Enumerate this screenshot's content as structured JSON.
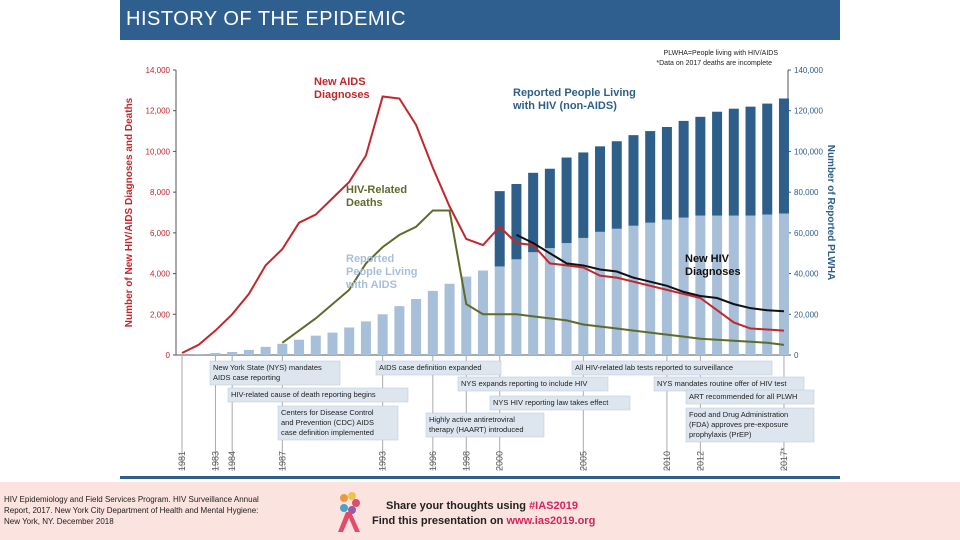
{
  "slide": {
    "title": "HISTORY OF THE EPIDEMIC"
  },
  "chart_data": {
    "type": "bar+line",
    "left_axis": {
      "label": "Number of New HIV/AIDS Diagnoses and Deaths",
      "range": [
        0,
        14000
      ],
      "ticks": [
        "0",
        "2,000",
        "4,000",
        "6,000",
        "8,000",
        "10,000",
        "12,000",
        "14,000"
      ]
    },
    "right_axis": {
      "label": "Number of Reported PLWHA",
      "range": [
        0,
        140000
      ],
      "ticks": [
        "0",
        "20,000",
        "40,000",
        "60,000",
        "80,000",
        "100,000",
        "120,000",
        "140,000"
      ]
    },
    "x_range": [
      1981,
      2017
    ],
    "year_labels": [
      "1981",
      "1983",
      "1984",
      "1987",
      "1993",
      "1996",
      "1998",
      "2000",
      "2005",
      "2010",
      "2012",
      "2017*"
    ],
    "legend_note": [
      "PLWHA=People living with HIV/AIDS",
      "*Data on 2017 deaths are incomplete"
    ],
    "bar_years": [
      1982,
      1983,
      1984,
      1985,
      1986,
      1987,
      1988,
      1989,
      1990,
      1991,
      1992,
      1993,
      1994,
      1995,
      1996,
      1997,
      1998,
      1999,
      2000,
      2001,
      2002,
      2003,
      2004,
      2005,
      2006,
      2007,
      2008,
      2009,
      2010,
      2011,
      2012,
      2013,
      2014,
      2015,
      2016,
      2017
    ],
    "series": [
      {
        "name": "Reported People Living with AIDS",
        "type": "bar",
        "axis": "right",
        "color": "#a7bfd8",
        "values": [
          500,
          1000,
          1500,
          2500,
          4000,
          5500,
          7500,
          9500,
          11000,
          13500,
          16500,
          20000,
          24000,
          27500,
          31500,
          35000,
          38500,
          41500,
          43500,
          47000,
          50500,
          52500,
          55000,
          57500,
          60500,
          62000,
          63500,
          65000,
          66500,
          67500,
          68500,
          68500,
          68500,
          68500,
          69000,
          69500
        ]
      },
      {
        "name": "Reported People Living with HIV (non-AIDS)",
        "type": "bar",
        "axis": "right",
        "color": "#2e5f8a",
        "stacked_on": "Reported People Living with AIDS",
        "values": [
          null,
          null,
          null,
          null,
          null,
          null,
          null,
          null,
          null,
          null,
          null,
          null,
          null,
          null,
          null,
          null,
          null,
          null,
          37000,
          37000,
          39000,
          39000,
          42000,
          42000,
          42000,
          43000,
          44500,
          45000,
          45500,
          47500,
          48500,
          51000,
          52500,
          53500,
          54500,
          56500
        ]
      },
      {
        "name": "New AIDS Diagnoses",
        "type": "line",
        "axis": "left",
        "color": "#c1272d",
        "x": [
          1981,
          1982,
          1983,
          1984,
          1985,
          1986,
          1987,
          1988,
          1989,
          1990,
          1991,
          1992,
          1993,
          1994,
          1995,
          1996,
          1997,
          1998,
          1999,
          2000,
          2001,
          2002,
          2003,
          2004,
          2005,
          2006,
          2007,
          2008,
          2009,
          2010,
          2011,
          2012,
          2013,
          2014,
          2015,
          2016,
          2017
        ],
        "values": [
          100,
          500,
          1200,
          2000,
          3000,
          4400,
          5200,
          6500,
          6900,
          7700,
          8500,
          9800,
          12700,
          12600,
          11300,
          9200,
          7300,
          5700,
          5400,
          6300,
          5500,
          5400,
          4500,
          4400,
          4300,
          3900,
          3800,
          3600,
          3400,
          3200,
          3000,
          2800,
          2200,
          1600,
          1300,
          1250,
          1200
        ]
      },
      {
        "name": "HIV-Related Deaths",
        "type": "line",
        "axis": "left",
        "color": "#5f6b2d",
        "x": [
          1987,
          1988,
          1989,
          1990,
          1991,
          1992,
          1993,
          1994,
          1995,
          1996,
          1997,
          1998,
          1999,
          2000,
          2001,
          2002,
          2003,
          2004,
          2005,
          2006,
          2007,
          2008,
          2009,
          2010,
          2011,
          2012,
          2013,
          2014,
          2015,
          2016,
          2017
        ],
        "values": [
          600,
          1200,
          1800,
          2500,
          3200,
          4500,
          5300,
          5900,
          6300,
          7100,
          7100,
          2500,
          2000,
          2000,
          2000,
          1900,
          1800,
          1700,
          1500,
          1400,
          1300,
          1200,
          1100,
          1000,
          900,
          800,
          750,
          700,
          650,
          600,
          500
        ]
      },
      {
        "name": "New HIV Diagnoses",
        "type": "line",
        "axis": "left",
        "color": "#111111",
        "x": [
          2001,
          2002,
          2003,
          2004,
          2005,
          2006,
          2007,
          2008,
          2009,
          2010,
          2011,
          2012,
          2013,
          2014,
          2015,
          2016,
          2017
        ],
        "values": [
          5900,
          5500,
          5000,
          4500,
          4400,
          4200,
          4100,
          3800,
          3600,
          3400,
          3100,
          2900,
          2800,
          2500,
          2300,
          2200,
          2150
        ]
      }
    ],
    "labels": {
      "aids_dx": [
        "New AIDS",
        "Diagnoses"
      ],
      "deaths": [
        "HIV-Related",
        "Deaths"
      ],
      "plwa": [
        "Reported",
        "People Living",
        "with AIDS"
      ],
      "plwh": [
        "Reported People Living",
        "with HIV (non-AIDS)"
      ],
      "hiv_dx": [
        "New HIV",
        "Diagnoses"
      ]
    },
    "annotations": [
      {
        "lines": [
          "New York State (NYS) mandates",
          "AIDS case reporting"
        ]
      },
      {
        "lines": [
          "HIV-related cause of death reporting begins"
        ]
      },
      {
        "lines": [
          "Centers for Disease Control",
          "and Prevention (CDC) AIDS",
          "case definition implemented"
        ]
      },
      {
        "lines": [
          "AIDS case definition expanded"
        ]
      },
      {
        "lines": [
          "Highly active antiretroviral",
          "therapy (HAART) introduced"
        ]
      },
      {
        "lines": [
          "NYS expands reporting to include HIV"
        ]
      },
      {
        "lines": [
          "NYS HIV reporting law takes effect"
        ]
      },
      {
        "lines": [
          "All HIV-related lab tests reported to surveillance"
        ]
      },
      {
        "lines": [
          "NYS mandates routine offer of HIV test"
        ]
      },
      {
        "lines": [
          "ART recommended for all PLWH"
        ]
      },
      {
        "lines": [
          "Food and Drug Administration",
          "(FDA) approves pre-exposure",
          "prophylaxis (PrEP)"
        ]
      }
    ]
  },
  "footer": {
    "citation_lines": [
      "HIV Epidemiology and Field Services Program. HIV Surveillance Annual",
      "Report, 2017. New York City Department of Health and Mental Hygiene:",
      "New York, NY. December 2018"
    ],
    "promo_line1_prefix": "Share your thoughts using ",
    "promo_line1_tag": "#IAS2019",
    "promo_line2_prefix": "Find this presentation on ",
    "promo_line2_link": "www.ias2019.org",
    "accent_color": "#d6235e"
  }
}
